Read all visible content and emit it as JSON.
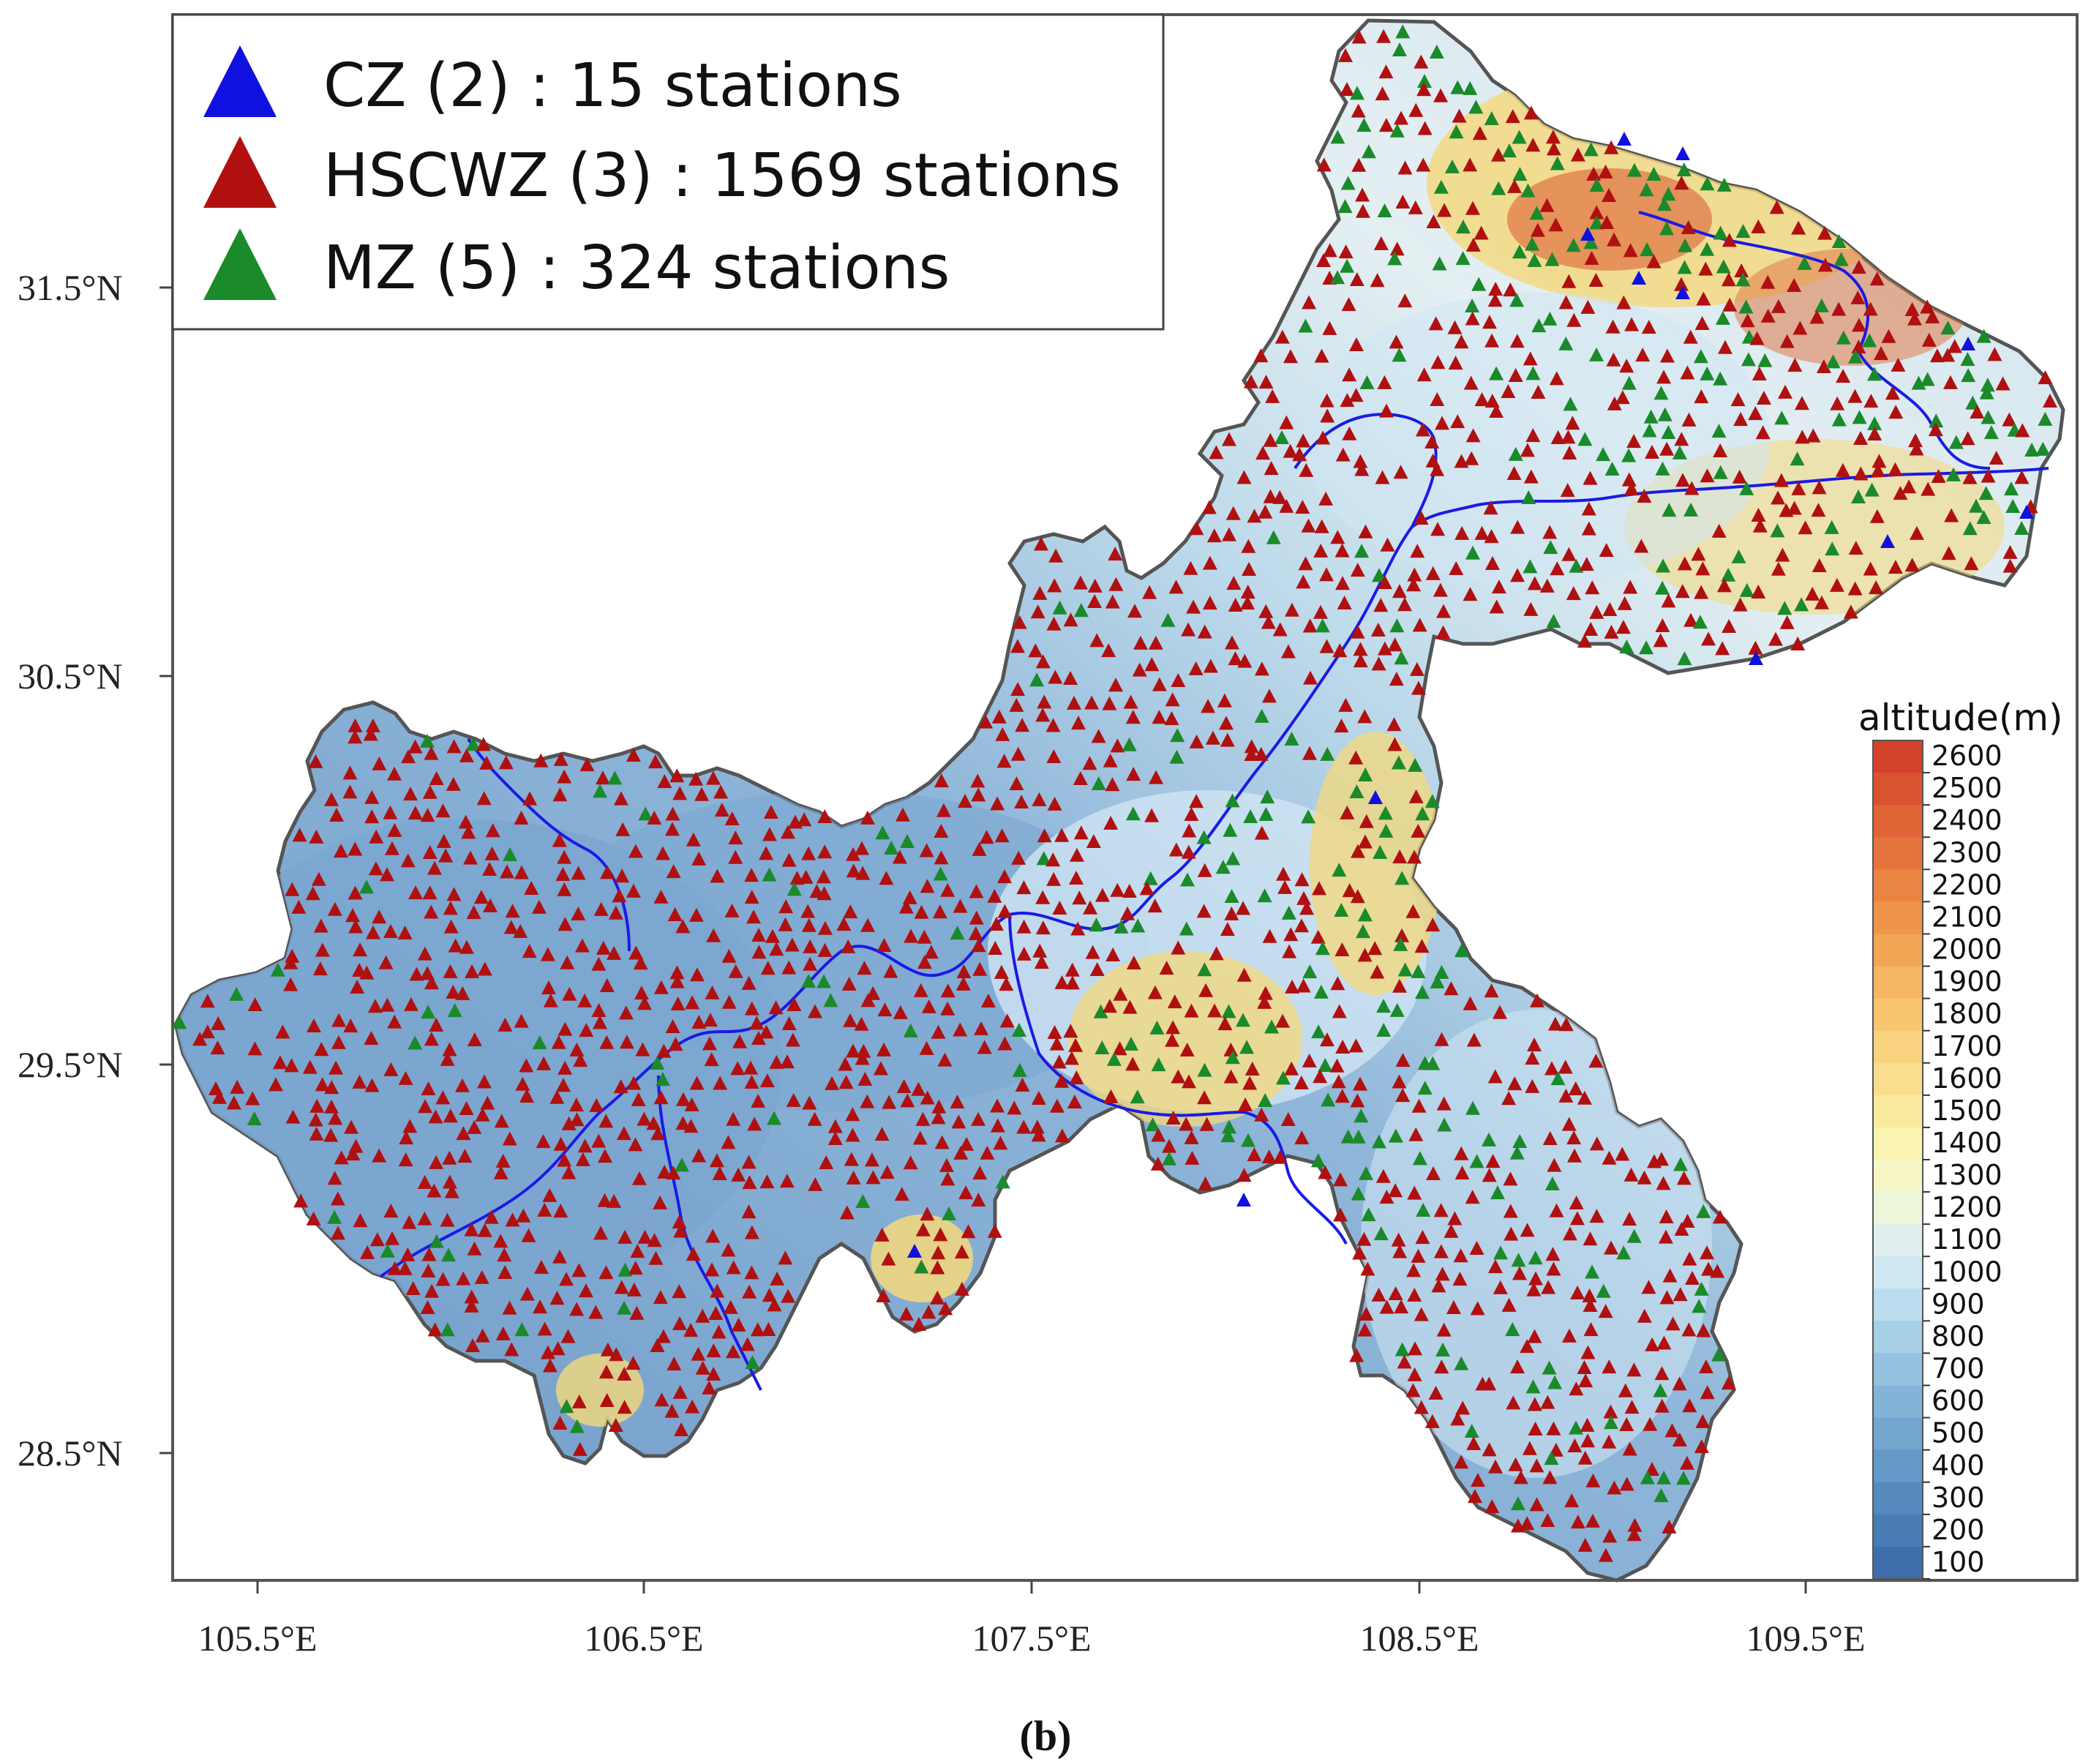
{
  "legend": {
    "items": [
      {
        "label": "CZ (2) : 15 stations",
        "color": "#1010e0",
        "icon": "triangle-icon"
      },
      {
        "label": "HSCWZ (3) : 1569 stations",
        "color": "#b01010",
        "icon": "triangle-icon"
      },
      {
        "label": "MZ (5) : 324 stations",
        "color": "#1a8a2a",
        "icon": "triangle-icon"
      }
    ]
  },
  "axes": {
    "lat_labels": [
      "31.5°N",
      "30.5°N",
      "29.5°N",
      "28.5°N"
    ],
    "lon_labels": [
      "105.5°E",
      "106.5°E",
      "107.5°E",
      "108.5°E",
      "109.5°E"
    ]
  },
  "colorbar": {
    "title": "altitude(m)",
    "ticks": [
      "2600",
      "2500",
      "2400",
      "2300",
      "2200",
      "2100",
      "2000",
      "1900",
      "1800",
      "1700",
      "1600",
      "1500",
      "1400",
      "1300",
      "1200",
      "1100",
      "1000",
      "900",
      "800",
      "700",
      "600",
      "500",
      "400",
      "300",
      "200",
      "100"
    ],
    "colors": [
      "#d3422a",
      "#da5330",
      "#e06436",
      "#e5733c",
      "#ea8443",
      "#ee944b",
      "#f2a555",
      "#f5b562",
      "#f7c470",
      "#f8d27f",
      "#f9de8e",
      "#faea9e",
      "#fbf3b2",
      "#f7f7c6",
      "#eef6da",
      "#e1f0ee",
      "#cfe7f3",
      "#bcdcef",
      "#a8cfe8",
      "#95c2e0",
      "#83b4d8",
      "#73a6cf",
      "#6498c6",
      "#568abd",
      "#497cb4",
      "#3d6eab"
    ]
  },
  "caption": "(b)",
  "map_colors": {
    "frame": "#555555",
    "border": "#555555",
    "river": "#1a1ae6",
    "low_terrain": "#7ba6d0",
    "mid_terrain": "#cfe5f2",
    "high_terrain": "#f5d87a",
    "peak_terrain": "#e07a48"
  }
}
